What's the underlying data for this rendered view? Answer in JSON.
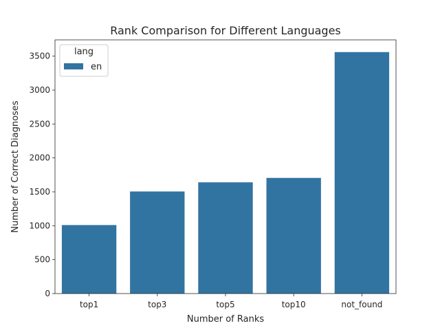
{
  "chart_data": {
    "type": "bar",
    "title": "Rank Comparison for Different Languages",
    "xlabel": "Number of Ranks",
    "ylabel": "Number of Correct Diagnoses",
    "categories": [
      "top1",
      "top3",
      "top5",
      "top10",
      "not_found"
    ],
    "series": [
      {
        "name": "en",
        "values": [
          1010,
          1505,
          1640,
          1705,
          3560
        ],
        "color": "#3274a1"
      }
    ],
    "ylim": [
      0,
      3740
    ],
    "yticks": [
      0,
      500,
      1000,
      1500,
      2000,
      2500,
      3000,
      3500
    ],
    "legend": {
      "title": "lang",
      "placement": "top-left"
    },
    "grid": false
  }
}
